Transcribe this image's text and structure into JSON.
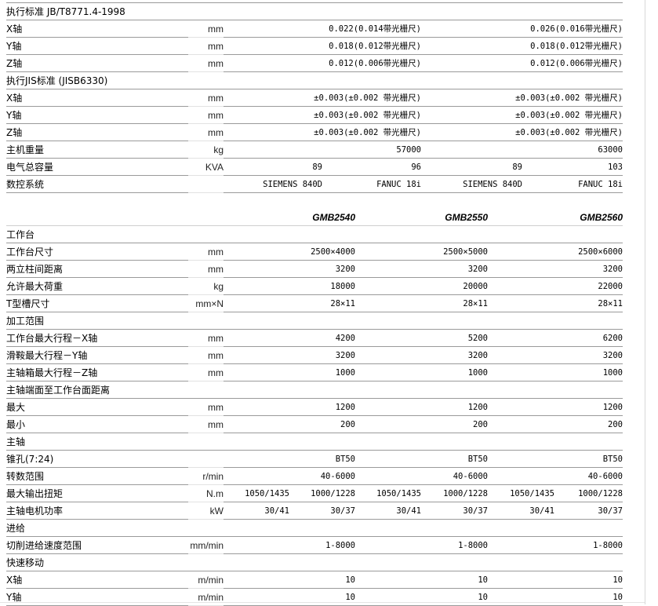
{
  "table1": {
    "rows": [
      {
        "section": "执行标准 JB/T8771.4-1998"
      },
      {
        "label": "X轴",
        "unit": "mm",
        "values": [
          "0.022(0.014带光栅尺)",
          "0.026(0.016带光栅尺)"
        ]
      },
      {
        "label": "Y轴",
        "unit": "mm",
        "values": [
          "0.018(0.012带光栅尺)",
          "0.018(0.012带光栅尺)"
        ]
      },
      {
        "label": "Z轴",
        "unit": "mm",
        "values": [
          "0.012(0.006带光栅尺)",
          "0.012(0.006带光栅尺)"
        ]
      },
      {
        "section": "执行JIS标准 (JISB6330)"
      },
      {
        "label": "X轴",
        "unit": "mm",
        "values": [
          "±0.003(±0.002 带光栅尺)",
          "±0.003(±0.002 带光栅尺)"
        ]
      },
      {
        "label": "Y轴",
        "unit": "mm",
        "values": [
          "±0.003(±0.002 带光栅尺)",
          "±0.003(±0.002 带光栅尺)"
        ]
      },
      {
        "label": "Z轴",
        "unit": "mm",
        "values": [
          "±0.003(±0.002 带光栅尺)",
          "±0.003(±0.002 带光栅尺)"
        ]
      },
      {
        "label": "主机重量",
        "unit": "kg",
        "values": [
          "57000",
          "63000"
        ]
      },
      {
        "label": "电气总容量",
        "unit": "KVA",
        "values": [
          "89",
          "96",
          "89",
          "103"
        ]
      },
      {
        "label": "数控系统",
        "unit": "",
        "values": [
          "SIEMENS 840D",
          "FANUC 18i",
          "SIEMENS 840D",
          "FANUC 18i"
        ]
      }
    ]
  },
  "table2": {
    "models": [
      "GMB2540",
      "GMB2550",
      "GMB2560"
    ],
    "rows": [
      {
        "section": "工作台"
      },
      {
        "label": "工作台尺寸",
        "unit": "mm",
        "values": [
          "2500×4000",
          "2500×5000",
          "2500×6000"
        ]
      },
      {
        "label": "两立柱间距离",
        "unit": "mm",
        "values": [
          "3200",
          "3200",
          "3200"
        ]
      },
      {
        "label": "允许最大荷重",
        "unit": "kg",
        "values": [
          "18000",
          "20000",
          "22000"
        ]
      },
      {
        "label": "T型槽尺寸",
        "unit": "mm×N",
        "values": [
          "28×11",
          "28×11",
          "28×11"
        ]
      },
      {
        "section": "加工范围"
      },
      {
        "label": "工作台最大行程－X轴",
        "unit": "mm",
        "values": [
          "4200",
          "5200",
          "6200"
        ]
      },
      {
        "label": "滑鞍最大行程－Y轴",
        "unit": "mm",
        "values": [
          "3200",
          "3200",
          "3200"
        ]
      },
      {
        "label": "主轴箱最大行程－Z轴",
        "unit": "mm",
        "values": [
          "1000",
          "1000",
          "1000"
        ]
      },
      {
        "section": "主轴端面至工作台面距离"
      },
      {
        "label": "最大",
        "unit": "mm",
        "values": [
          "1200",
          "1200",
          "1200"
        ]
      },
      {
        "label": "最小",
        "unit": "mm",
        "values": [
          "200",
          "200",
          "200"
        ]
      },
      {
        "section": "主轴"
      },
      {
        "label": "锥孔(7:24)",
        "unit": "",
        "values": [
          "BT50",
          "BT50",
          "BT50"
        ]
      },
      {
        "label": "转数范围",
        "unit": "r/min",
        "values": [
          "40-6000",
          "40-6000",
          "40-6000"
        ]
      },
      {
        "label": "最大输出扭矩",
        "unit": "N.m",
        "values": [
          "1050/1435",
          "1000/1228",
          "1050/1435",
          "1000/1228",
          "1050/1435",
          "1000/1228"
        ]
      },
      {
        "label": "主轴电机功率",
        "unit": "kW",
        "values": [
          "30/41",
          "30/37",
          "30/41",
          "30/37",
          "30/41",
          "30/37"
        ]
      },
      {
        "section": "进给"
      },
      {
        "label": "切削进给速度范围",
        "unit": "mm/min",
        "values": [
          "1-8000",
          "1-8000",
          "1-8000"
        ]
      },
      {
        "section": "快速移动"
      },
      {
        "label": "X轴",
        "unit": "m/min",
        "values": [
          "10",
          "10",
          "10"
        ]
      },
      {
        "label": "Y轴",
        "unit": "m/min",
        "values": [
          "10",
          "10",
          "10"
        ]
      }
    ]
  }
}
